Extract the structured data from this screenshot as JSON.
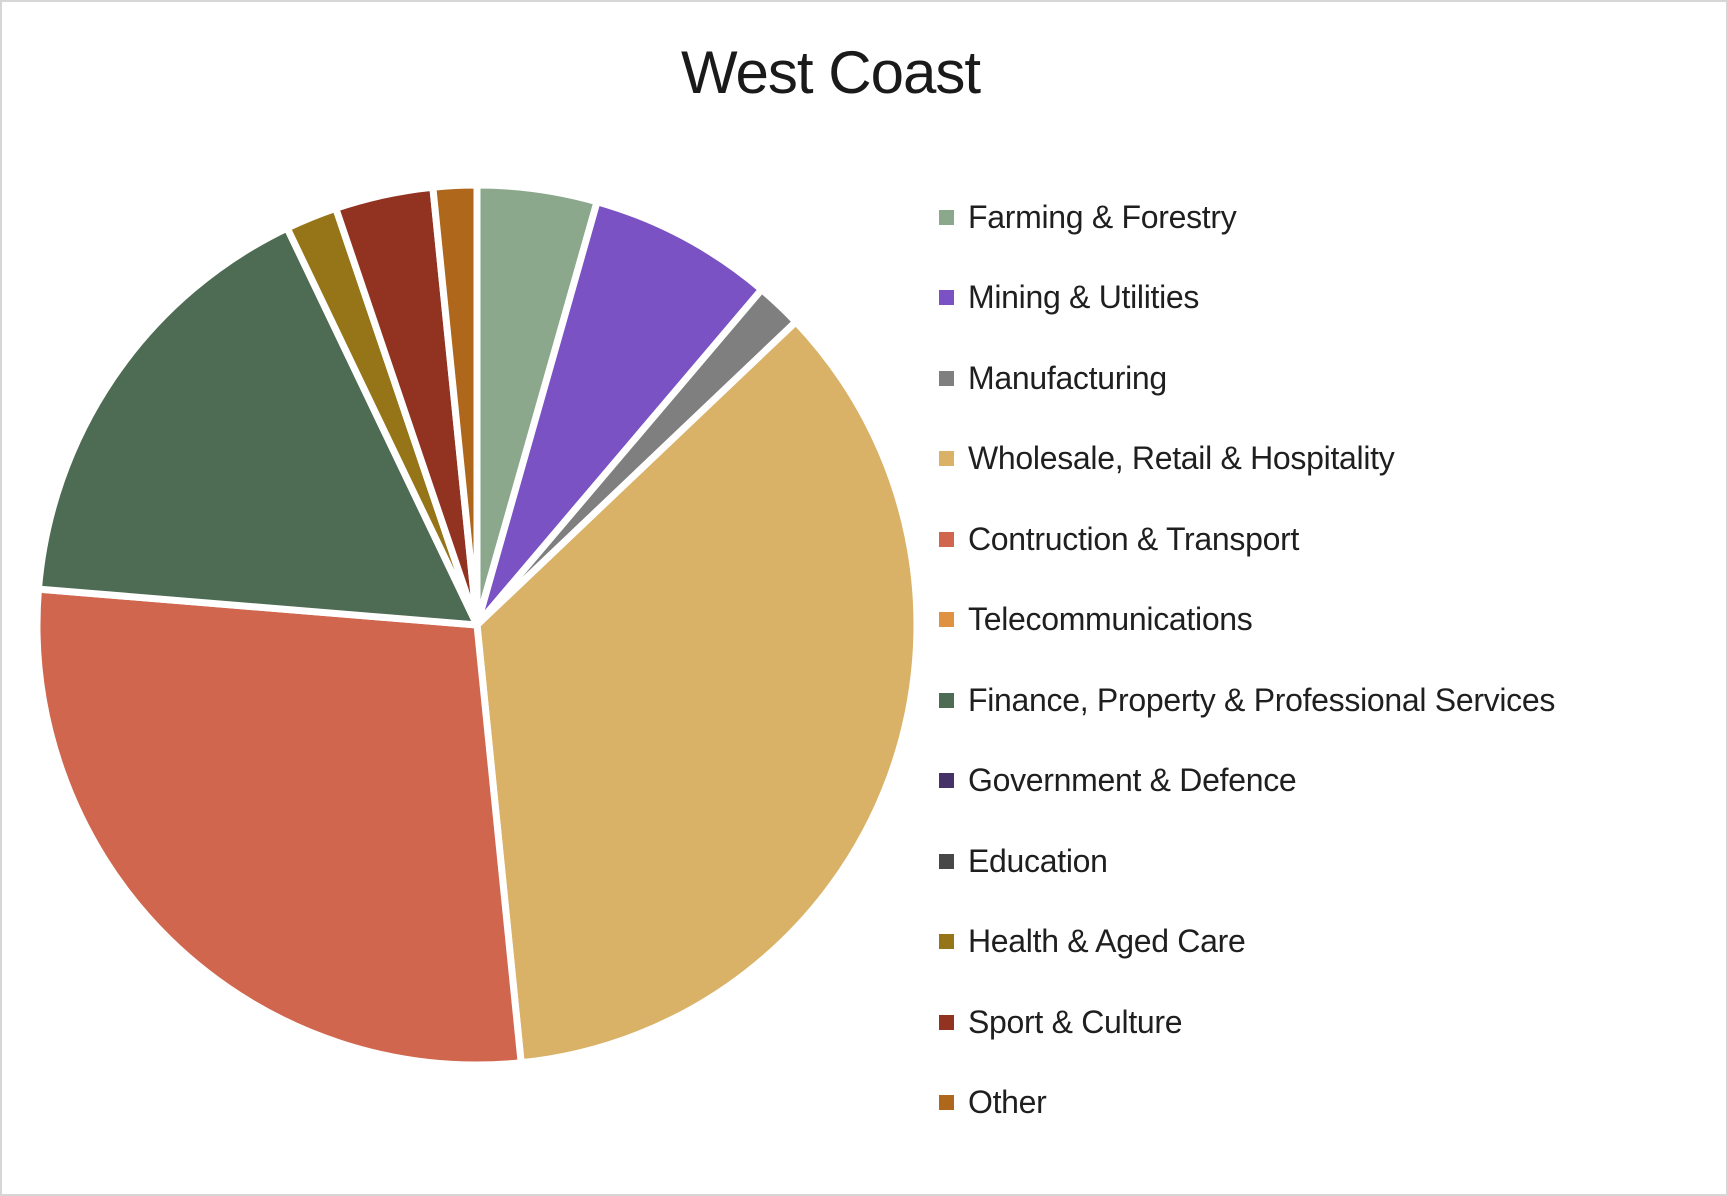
{
  "frame": {
    "background": "#ffffff",
    "border_color": "#d6d6d6"
  },
  "chart_data": {
    "type": "pie",
    "title": "West Coast",
    "legend_position": "right",
    "direction": "clockwise",
    "start_angle_deg": 0,
    "values_unit": "percent (estimated from slice angles)",
    "categories": [
      "Farming & Forestry",
      "Mining & Utilities",
      "Manufacturing",
      "Wholesale, Retail & Hospitality",
      "Contruction & Transport",
      "Telecommunications",
      "Finance, Property & Professional Services",
      "Government & Defence",
      "Education",
      "Health & Aged Care",
      "Sport & Culture",
      "Other"
    ],
    "values": [
      4.4,
      6.8,
      1.7,
      35.5,
      27.9,
      0,
      16.6,
      0,
      0,
      1.9,
      3.6,
      1.6
    ],
    "colors": [
      "#8BA88D",
      "#7A52C4",
      "#7F7F7F",
      "#D9B167",
      "#D0664E",
      "#DF9242",
      "#4E6B53",
      "#463269",
      "#474747",
      "#957518",
      "#923322",
      "#AE671B"
    ],
    "slice_separator_color": "#ffffff"
  }
}
